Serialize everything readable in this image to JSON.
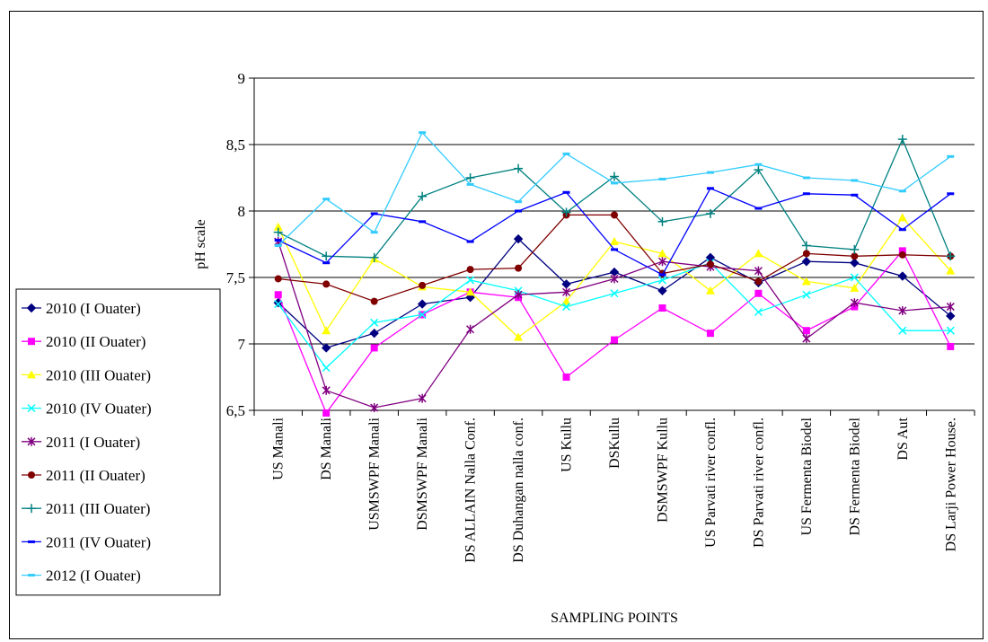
{
  "chart_data": {
    "type": "line",
    "title": "",
    "xlabel": "SAMPLING POINTS",
    "ylabel": "pH scale",
    "ylim": [
      6.5,
      9
    ],
    "y_ticks": [
      "6,5",
      "7",
      "7,5",
      "8",
      "8,5",
      "9"
    ],
    "y_tick_values": [
      6.5,
      7,
      7.5,
      8,
      8.5,
      9
    ],
    "grid": "horizontal",
    "legend_position": "left",
    "categories": [
      "US Manali",
      "DS Manali",
      "USMSWPF Manali",
      "DSMSWPF Manali",
      "DS ALLAIN Nalla Conf.",
      "DS Duhangan nalla conf.",
      "US Kullu",
      "DSKullu",
      "DSMSWPF Kullu",
      "US Parvati river confl.",
      "DS Parvati river confl.",
      "US Fermenta Biodel",
      "DS Fermenta Biodel",
      "DS Aut",
      "DS Larji Power House."
    ],
    "series": [
      {
        "name": "2010 (I Ouater)",
        "color": "#000080",
        "marker": "diamond",
        "values": [
          7.31,
          6.97,
          7.08,
          7.3,
          7.35,
          7.79,
          7.45,
          7.54,
          7.4,
          7.65,
          7.46,
          7.62,
          7.61,
          7.51,
          7.21
        ]
      },
      {
        "name": "2010 (II Ouater)",
        "color": "#ff00ff",
        "marker": "square",
        "values": [
          7.37,
          6.48,
          6.97,
          7.22,
          7.39,
          7.35,
          6.75,
          7.03,
          7.27,
          7.08,
          7.38,
          7.1,
          7.28,
          7.7,
          6.98
        ]
      },
      {
        "name": "2010 (III Ouater)",
        "color": "#ffff00",
        "marker": "triangle",
        "values": [
          7.88,
          7.1,
          7.64,
          7.43,
          7.39,
          7.05,
          7.32,
          7.77,
          7.68,
          7.4,
          7.68,
          7.47,
          7.42,
          7.95,
          7.55
        ]
      },
      {
        "name": "2010 (IV Ouater)",
        "color": "#00ffff",
        "marker": "x",
        "values": [
          7.3,
          6.82,
          7.16,
          7.22,
          7.48,
          7.4,
          7.28,
          7.38,
          7.48,
          7.61,
          7.24,
          7.37,
          7.5,
          7.1,
          7.1
        ]
      },
      {
        "name": "2011 (I Ouater)",
        "color": "#800080",
        "marker": "star",
        "values": [
          7.77,
          6.65,
          6.52,
          6.59,
          7.11,
          7.37,
          7.39,
          7.49,
          7.62,
          7.58,
          7.55,
          7.04,
          7.31,
          7.25,
          7.28
        ]
      },
      {
        "name": "2011 (II Ouater)",
        "color": "#800000",
        "marker": "circle",
        "values": [
          7.49,
          7.45,
          7.32,
          7.44,
          7.56,
          7.57,
          7.97,
          7.97,
          7.53,
          7.6,
          7.47,
          7.68,
          7.66,
          7.67,
          7.66
        ]
      },
      {
        "name": "2011 (III Ouater)",
        "color": "#008080",
        "marker": "plus",
        "values": [
          7.84,
          7.66,
          7.65,
          8.11,
          8.25,
          8.32,
          7.99,
          8.26,
          7.92,
          7.98,
          8.31,
          7.74,
          7.71,
          8.54,
          7.66
        ]
      },
      {
        "name": "2011 (IV Ouater)",
        "color": "#0000ff",
        "marker": "dash",
        "values": [
          7.78,
          7.61,
          7.98,
          7.92,
          7.77,
          8.0,
          8.14,
          7.71,
          7.52,
          8.17,
          8.02,
          8.13,
          8.12,
          7.86,
          8.13
        ]
      },
      {
        "name": "2012 (I Ouater)",
        "color": "#33ccff",
        "marker": "dash",
        "values": [
          7.74,
          8.09,
          7.84,
          8.59,
          8.2,
          8.07,
          8.43,
          8.21,
          8.24,
          8.29,
          8.35,
          8.25,
          8.23,
          8.15,
          8.41
        ]
      }
    ]
  }
}
